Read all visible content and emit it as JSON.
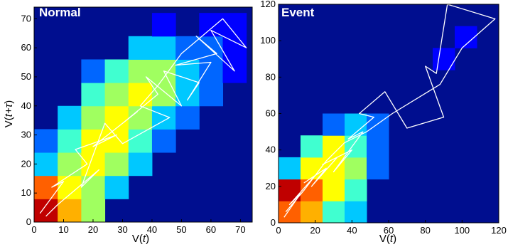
{
  "chart_data": [
    {
      "type": "heatmap",
      "title": "Normal",
      "xlabel_main": "V(",
      "xlabel_var": "t",
      "xlabel_end": ")",
      "ylabel_main": "V(",
      "ylabel_var": "t+τ",
      "ylabel_end": ")",
      "xlim": [
        0,
        74
      ],
      "ylim": [
        0,
        74
      ],
      "xticks": [
        0,
        10,
        20,
        30,
        40,
        50,
        60,
        70
      ],
      "yticks": [
        0,
        10,
        20,
        30,
        40,
        50,
        60,
        70
      ],
      "background": "#000e8f",
      "cell_size": 8,
      "colorscale": [
        "#000e8f",
        "#0000ff",
        "#0066ff",
        "#00c8ff",
        "#40ffd0",
        "#a0ff60",
        "#ffff00",
        "#ffb000",
        "#ff6000",
        "#c00000"
      ],
      "cells": [
        [
          0,
          0,
          9
        ],
        [
          8,
          0,
          7
        ],
        [
          16,
          0,
          5
        ],
        [
          0,
          8,
          8
        ],
        [
          8,
          8,
          6
        ],
        [
          16,
          8,
          5
        ],
        [
          24,
          8,
          3
        ],
        [
          0,
          16,
          3
        ],
        [
          8,
          16,
          5
        ],
        [
          16,
          16,
          6
        ],
        [
          24,
          16,
          5
        ],
        [
          32,
          16,
          3
        ],
        [
          0,
          24,
          2
        ],
        [
          8,
          24,
          4
        ],
        [
          16,
          24,
          6
        ],
        [
          24,
          24,
          6
        ],
        [
          32,
          24,
          4
        ],
        [
          40,
          24,
          2
        ],
        [
          8,
          32,
          3
        ],
        [
          16,
          32,
          5
        ],
        [
          24,
          32,
          6
        ],
        [
          32,
          32,
          5
        ],
        [
          40,
          32,
          3
        ],
        [
          48,
          32,
          2
        ],
        [
          16,
          40,
          4
        ],
        [
          24,
          40,
          5
        ],
        [
          32,
          40,
          6
        ],
        [
          40,
          40,
          5
        ],
        [
          48,
          40,
          3
        ],
        [
          56,
          40,
          2
        ],
        [
          16,
          48,
          2
        ],
        [
          24,
          48,
          4
        ],
        [
          32,
          48,
          5
        ],
        [
          40,
          48,
          5
        ],
        [
          48,
          48,
          3
        ],
        [
          56,
          48,
          2
        ],
        [
          64,
          48,
          1
        ],
        [
          32,
          56,
          3
        ],
        [
          40,
          56,
          3
        ],
        [
          48,
          56,
          2
        ],
        [
          56,
          56,
          2
        ],
        [
          64,
          56,
          1
        ],
        [
          40,
          64,
          1
        ],
        [
          56,
          64,
          1
        ],
        [
          64,
          64,
          1
        ]
      ],
      "trajectory": [
        [
          2,
          3
        ],
        [
          10,
          14
        ],
        [
          6,
          12
        ],
        [
          18,
          20
        ],
        [
          14,
          25
        ],
        [
          28,
          30
        ],
        [
          20,
          26
        ],
        [
          35,
          38
        ],
        [
          30,
          34
        ],
        [
          42,
          44
        ],
        [
          38,
          50
        ],
        [
          50,
          40
        ],
        [
          44,
          52
        ],
        [
          56,
          48
        ],
        [
          52,
          42
        ],
        [
          60,
          55
        ],
        [
          48,
          54
        ],
        [
          62,
          58
        ],
        [
          55,
          64
        ],
        [
          68,
          52
        ],
        [
          60,
          66
        ],
        [
          72,
          60
        ],
        [
          64,
          70
        ],
        [
          50,
          58
        ],
        [
          42,
          47
        ],
        [
          36,
          40
        ],
        [
          46,
          36
        ],
        [
          30,
          27
        ],
        [
          24,
          34
        ],
        [
          16,
          12
        ],
        [
          22,
          18
        ],
        [
          8,
          6
        ],
        [
          4,
          2
        ]
      ]
    },
    {
      "type": "heatmap",
      "title": "Event",
      "xlabel_main": "V(",
      "xlabel_var": "t",
      "xlabel_end": ")",
      "ylabel_main": "",
      "ylabel_var": "",
      "ylabel_end": "",
      "xlim": [
        0,
        120
      ],
      "ylim": [
        0,
        120
      ],
      "xticks": [
        0,
        20,
        40,
        60,
        80,
        100,
        120
      ],
      "yticks": [
        0,
        20,
        40,
        60,
        80,
        100,
        120
      ],
      "background": "#000e8f",
      "cell_size": 12,
      "colorscale": [
        "#000e8f",
        "#0000ff",
        "#0066ff",
        "#00c8ff",
        "#40ffd0",
        "#a0ff60",
        "#ffff00",
        "#ffb000",
        "#ff6000",
        "#c00000"
      ],
      "cells": [
        [
          0,
          0,
          8
        ],
        [
          12,
          0,
          7
        ],
        [
          24,
          0,
          4
        ],
        [
          36,
          0,
          3
        ],
        [
          0,
          12,
          9
        ],
        [
          12,
          12,
          8
        ],
        [
          24,
          12,
          6
        ],
        [
          36,
          12,
          4
        ],
        [
          0,
          24,
          3
        ],
        [
          12,
          24,
          6
        ],
        [
          24,
          24,
          6
        ],
        [
          36,
          24,
          5
        ],
        [
          48,
          24,
          2
        ],
        [
          12,
          36,
          4
        ],
        [
          24,
          36,
          6
        ],
        [
          36,
          36,
          4
        ],
        [
          48,
          36,
          2
        ],
        [
          24,
          48,
          2
        ],
        [
          36,
          48,
          3
        ],
        [
          48,
          48,
          2
        ],
        [
          84,
          84,
          1
        ],
        [
          96,
          96,
          1
        ]
      ],
      "trajectory": [
        [
          3,
          3
        ],
        [
          12,
          16
        ],
        [
          6,
          10
        ],
        [
          20,
          26
        ],
        [
          14,
          22
        ],
        [
          26,
          30
        ],
        [
          18,
          20
        ],
        [
          32,
          36
        ],
        [
          24,
          32
        ],
        [
          40,
          40
        ],
        [
          30,
          28
        ],
        [
          46,
          50
        ],
        [
          38,
          46
        ],
        [
          52,
          58
        ],
        [
          44,
          60
        ],
        [
          58,
          72
        ],
        [
          70,
          52
        ],
        [
          90,
          58
        ],
        [
          80,
          86
        ],
        [
          86,
          82
        ],
        [
          92,
          120
        ],
        [
          118,
          112
        ],
        [
          100,
          96
        ],
        [
          88,
          76
        ],
        [
          62,
          60
        ],
        [
          48,
          50
        ],
        [
          36,
          44
        ],
        [
          26,
          34
        ],
        [
          14,
          18
        ],
        [
          4,
          6
        ]
      ]
    }
  ]
}
